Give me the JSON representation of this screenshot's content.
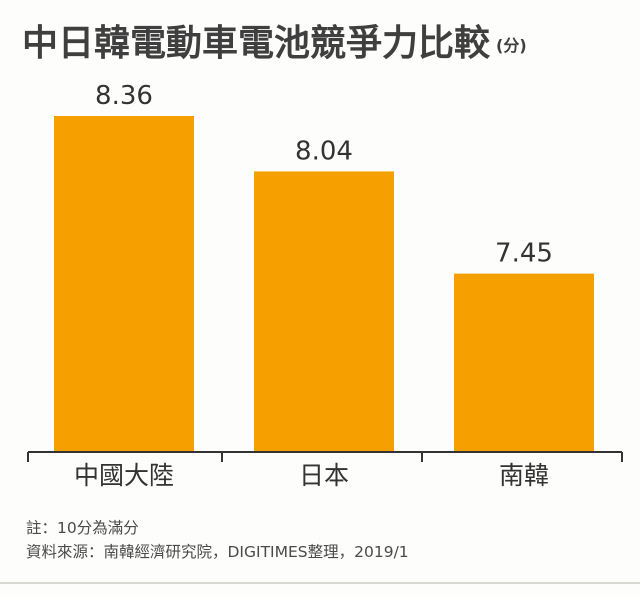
{
  "title": "中日韓電動車電池競爭力比較",
  "title_unit": "(分)",
  "chart_data": {
    "type": "bar",
    "title": "中日韓電動車電池競爭力比較",
    "unit": "(分)",
    "categories": [
      "中國大陸",
      "日本",
      "南韓"
    ],
    "values": [
      8.36,
      8.04,
      7.45
    ],
    "value_labels": [
      "8.36",
      "8.04",
      "7.45"
    ],
    "bar_color": "#f5a000",
    "axis_color": "#333333",
    "grid": false,
    "legend": "none"
  },
  "notes": {
    "note": "註：10分為滿分",
    "source": "資料來源：南韓經濟研究院，DIGITIMES整理，2019/1"
  }
}
